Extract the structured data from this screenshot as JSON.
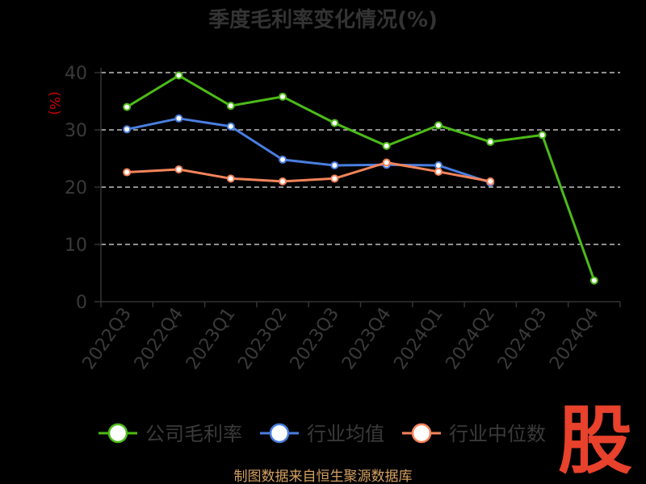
{
  "chart_data": {
    "type": "line",
    "title": "季度毛利率变化情况(%)",
    "ylabel": "(%)",
    "ylim": [
      0,
      40
    ],
    "yticks": [
      0,
      10,
      20,
      30,
      40
    ],
    "grid": true,
    "legend_position": "bottom",
    "categories": [
      "2022Q3",
      "2022Q4",
      "2023Q1",
      "2023Q2",
      "2023Q3",
      "2023Q4",
      "2024Q1",
      "2024Q2",
      "2024Q3",
      "2024Q4"
    ],
    "series": [
      {
        "name": "公司毛利率",
        "color": "#4cbb17",
        "values": [
          34.0,
          39.5,
          34.2,
          35.8,
          31.2,
          27.2,
          30.8,
          27.9,
          29.1,
          3.7
        ]
      },
      {
        "name": "行业均值",
        "color": "#4a7ee0",
        "values": [
          30.1,
          32.0,
          30.6,
          24.8,
          23.8,
          23.9,
          23.8,
          20.8,
          null,
          null
        ]
      },
      {
        "name": "行业中位数",
        "color": "#f5845a",
        "values": [
          22.6,
          23.1,
          21.5,
          21.0,
          21.5,
          24.3,
          22.7,
          21.0,
          null,
          null
        ]
      }
    ]
  },
  "source": "制图数据来自恒生聚源数据库",
  "logo": "股"
}
